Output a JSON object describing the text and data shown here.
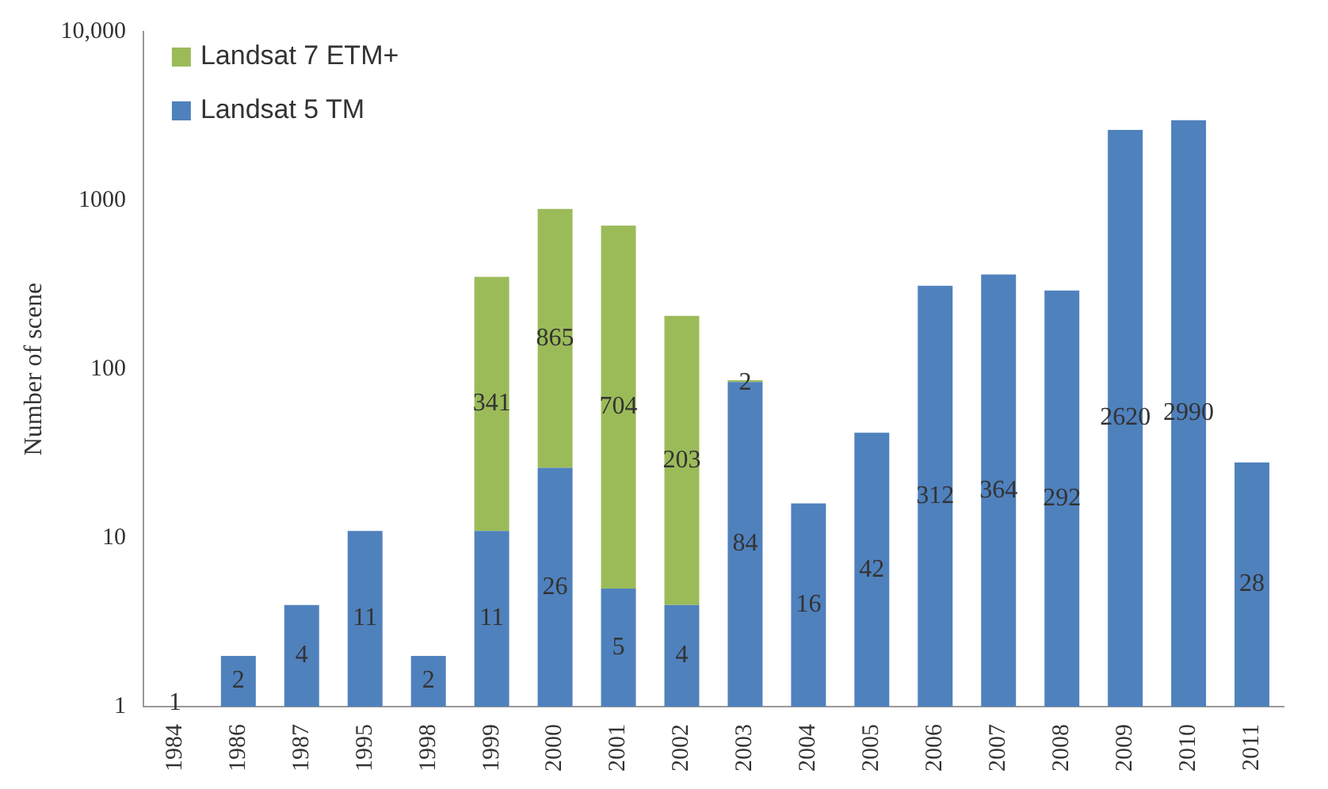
{
  "chart_data": {
    "type": "bar",
    "stacked": true,
    "log": "y",
    "ylabel": "Number of scene",
    "categories": [
      "1984",
      "1986",
      "1987",
      "1995",
      "1998",
      "1999",
      "2000",
      "2001",
      "2002",
      "2003",
      "2004",
      "2005",
      "2006",
      "2007",
      "2008",
      "2009",
      "2010",
      "2011"
    ],
    "series": [
      {
        "name": "Landsat 5 TM",
        "color": "#4f81bd",
        "values": [
          1,
          2,
          4,
          11,
          2,
          11,
          26,
          5,
          4,
          84,
          16,
          42,
          312,
          364,
          292,
          2620,
          2990,
          28
        ]
      },
      {
        "name": "Landsat 7 ETM+",
        "color": "#9bbb59",
        "values": [
          null,
          null,
          null,
          null,
          null,
          341,
          865,
          704,
          203,
          2,
          null,
          null,
          null,
          null,
          null,
          null,
          null,
          null
        ]
      }
    ],
    "ylim": [
      1,
      10000
    ],
    "yticks": [
      1,
      10,
      100,
      1000,
      {
        "value": 10000,
        "label": "10,000"
      }
    ],
    "grid": false,
    "legend": "top left",
    "data_labels": true
  }
}
